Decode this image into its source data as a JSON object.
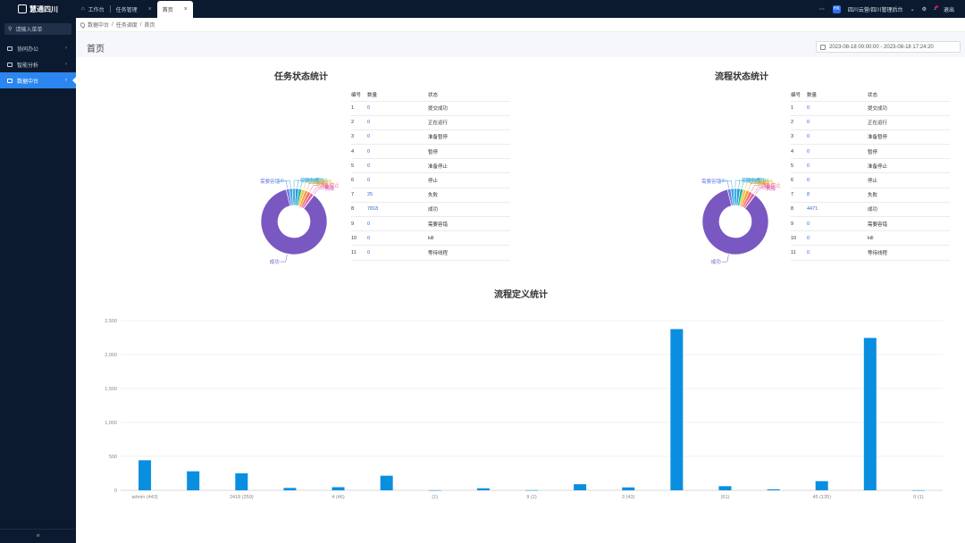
{
  "app": {
    "logo_text": "慧通四川"
  },
  "tabs": [
    {
      "label": "工作台",
      "active": false,
      "closable": false
    },
    {
      "label": "任务管理",
      "active": false,
      "closable": true
    },
    {
      "label": "首页",
      "active": true,
      "closable": true
    }
  ],
  "header": {
    "org_badge": "HK",
    "org_name": "四川云营/四川管理后台",
    "user": "退出"
  },
  "sidebar": {
    "search_placeholder": "请输入菜单",
    "items": [
      {
        "label": "协同办公",
        "active": false
      },
      {
        "label": "智能分析",
        "active": false
      },
      {
        "label": "数据中台",
        "active": true
      }
    ],
    "collapse_icon": "≡"
  },
  "breadcrumb": [
    "数据中台",
    "任务调度",
    "首页"
  ],
  "page": {
    "title": "首页",
    "date_range": "2023-08-18 00:00:00 - 2023-08-18 17:24:20"
  },
  "task_stats": {
    "title": "任务状态统计",
    "headers": [
      "编号",
      "数量",
      "状态"
    ],
    "rows": [
      {
        "id": "1",
        "count": "0",
        "status": "提交成功"
      },
      {
        "id": "2",
        "count": "0",
        "status": "正在运行"
      },
      {
        "id": "3",
        "count": "0",
        "status": "准备暂停"
      },
      {
        "id": "4",
        "count": "0",
        "status": "暂停"
      },
      {
        "id": "5",
        "count": "0",
        "status": "准备停止"
      },
      {
        "id": "6",
        "count": "0",
        "status": "停止"
      },
      {
        "id": "7",
        "count": "25",
        "status": "失败"
      },
      {
        "id": "8",
        "count": "7818",
        "status": "成功"
      },
      {
        "id": "9",
        "count": "0",
        "status": "需要容错"
      },
      {
        "id": "10",
        "count": "0",
        "status": "kill"
      },
      {
        "id": "11",
        "count": "0",
        "status": "等待线程"
      }
    ],
    "pie_labels": [
      "提交成功",
      "正在运行",
      "准备暂停",
      "暂停",
      "准备停止",
      "停止",
      "失败",
      "成功",
      "需要容错",
      "kill",
      "等待线程"
    ]
  },
  "process_stats": {
    "title": "流程状态统计",
    "headers": [
      "编号",
      "数量",
      "状态"
    ],
    "rows": [
      {
        "id": "1",
        "count": "0",
        "status": "提交成功"
      },
      {
        "id": "2",
        "count": "0",
        "status": "正在运行"
      },
      {
        "id": "3",
        "count": "0",
        "status": "准备暂停"
      },
      {
        "id": "4",
        "count": "0",
        "status": "暂停"
      },
      {
        "id": "5",
        "count": "0",
        "status": "准备停止"
      },
      {
        "id": "6",
        "count": "0",
        "status": "停止"
      },
      {
        "id": "7",
        "count": "8",
        "status": "失败"
      },
      {
        "id": "8",
        "count": "4471",
        "status": "成功"
      },
      {
        "id": "9",
        "count": "0",
        "status": "需要容错"
      },
      {
        "id": "10",
        "count": "0",
        "status": "kill"
      },
      {
        "id": "11",
        "count": "0",
        "status": "等待线程"
      }
    ]
  },
  "colors": {
    "bar": "#0a8fe0",
    "pie_main": "#7a58c1",
    "pie_slices": [
      "#2d9ad8",
      "#1fb7b0",
      "#f4c53d",
      "#f1a33b",
      "#ef6d6d",
      "#e95aa0",
      "#d34fc3",
      "#7a58c1",
      "#6a7fe0",
      "#4aa3e8",
      "#3ab0e0"
    ]
  },
  "chart_data": {
    "type": "bar",
    "title": "流程定义统计",
    "ylim": [
      0,
      2500
    ],
    "yticks": [
      "0",
      "500",
      "1,000",
      "1,500",
      "2,000",
      "2,500"
    ],
    "grid": true,
    "categories": [
      "admin (443)",
      "",
      "2418 (250)",
      "",
      "4 (46)",
      "",
      "(1)",
      "",
      "9 (2)",
      "",
      "3 (43)",
      "",
      "(61)",
      "",
      "45 (135)",
      "",
      "0 (1)"
    ],
    "values": [
      443,
      280,
      250,
      35,
      46,
      215,
      1,
      30,
      2,
      90,
      43,
      2375,
      61,
      15,
      135,
      2245,
      1
    ]
  }
}
